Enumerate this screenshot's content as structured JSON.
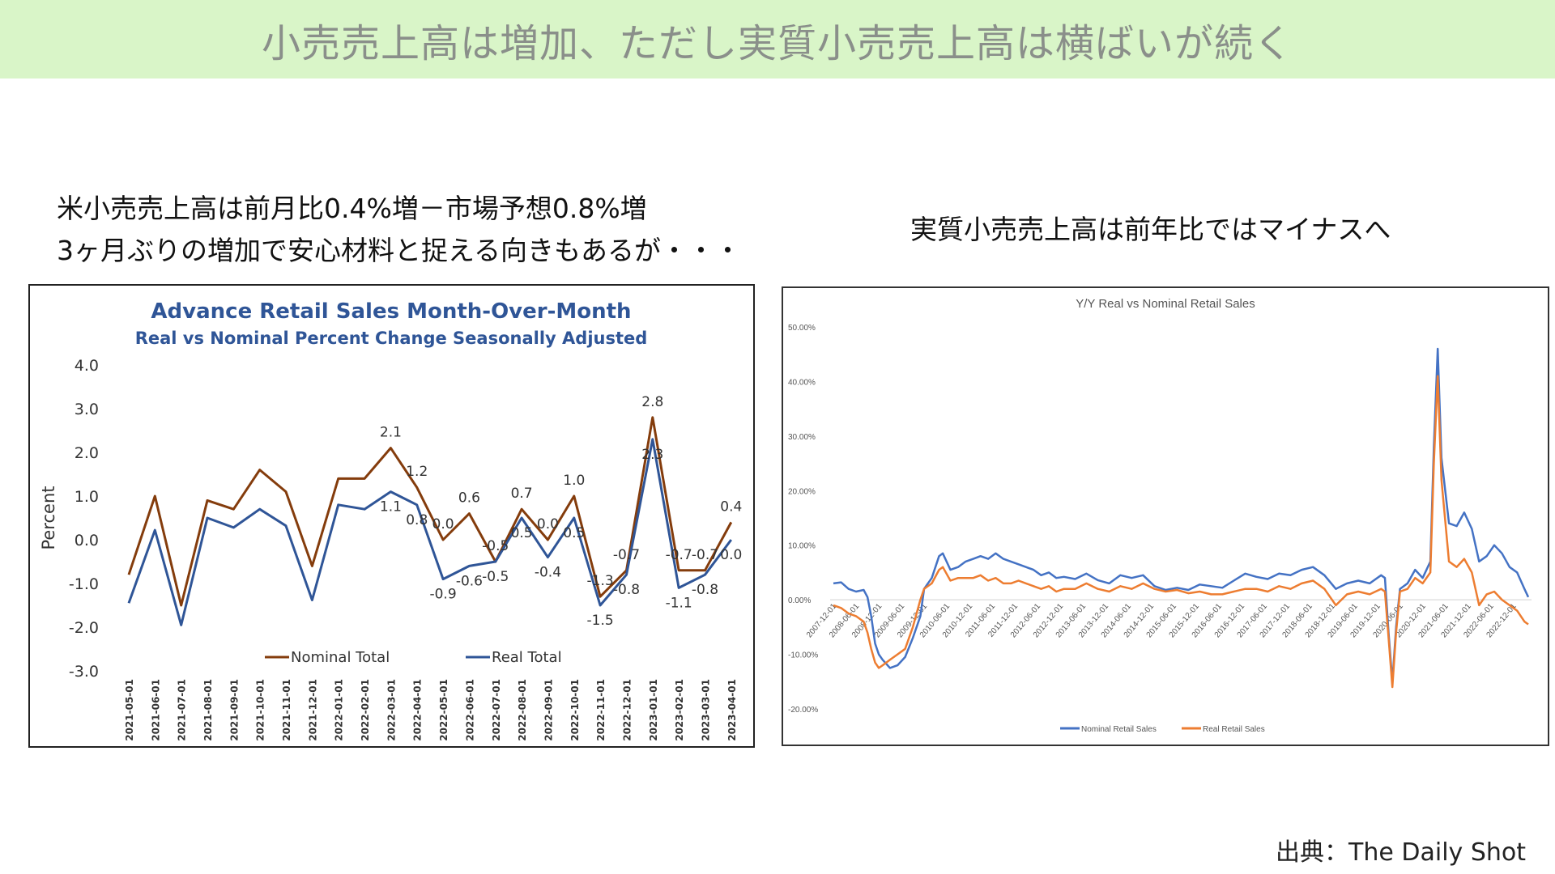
{
  "banner": {
    "title": "小売売上高は増加、ただし実質小売売上高は横ばいが続く"
  },
  "captions": {
    "left_line1": "米小売売上高は前月比0.4%増－市場予想0.8%増",
    "left_line2": "3ヶ月ぶりの増加で安心材料と捉える向きもあるが・・・",
    "right": "実質小売売上高は前年比ではマイナスへ"
  },
  "source": "出典：The Daily Shot",
  "chart_data": [
    {
      "type": "line",
      "title": "Advance Retail Sales Month-Over-Month",
      "subtitle": "Real vs Nominal Percent Change Seasonally Adjusted",
      "ylabel": "Percent",
      "ylim": [
        -3,
        4
      ],
      "y_ticks": [
        "4.0",
        "3.0",
        "2.0",
        "1.0",
        "0.0",
        "-1.0",
        "-2.0",
        "-3.0"
      ],
      "categories": [
        "2021-05-01",
        "2021-06-01",
        "2021-07-01",
        "2021-08-01",
        "2021-09-01",
        "2021-10-01",
        "2021-11-01",
        "2021-12-01",
        "2022-01-01",
        "2022-02-01",
        "2022-03-01",
        "2022-04-01",
        "2022-05-01",
        "2022-06-01",
        "2022-07-01",
        "2022-08-01",
        "2022-09-01",
        "2022-10-01",
        "2022-11-01",
        "2022-12-01",
        "2023-01-01",
        "2023-02-01",
        "2023-03-01",
        "2023-04-01"
      ],
      "series": [
        {
          "name": "Nominal Total",
          "color": "#843c0c",
          "values": [
            -0.8,
            1.0,
            -1.5,
            0.9,
            0.7,
            1.6,
            1.1,
            -0.6,
            1.4,
            1.4,
            2.1,
            1.2,
            0.0,
            0.6,
            -0.5,
            0.7,
            0.0,
            1.0,
            -1.3,
            -0.7,
            2.8,
            -0.7,
            -0.7,
            0.4
          ]
        },
        {
          "name": "Real Total",
          "color": "#2f5597",
          "values": [
            -1.45,
            0.22,
            -1.95,
            0.5,
            0.28,
            0.7,
            0.32,
            -1.38,
            0.8,
            0.7,
            1.1,
            0.8,
            -0.9,
            -0.6,
            -0.5,
            0.5,
            -0.4,
            0.5,
            -1.5,
            -0.8,
            2.3,
            -1.1,
            -0.8,
            0.0
          ]
        }
      ],
      "data_labels": {
        "nominal": [
          {
            "i": 10,
            "text": "2.1"
          },
          {
            "i": 11,
            "text": "1.2"
          },
          {
            "i": 12,
            "text": "0.0"
          },
          {
            "i": 13,
            "text": "0.6"
          },
          {
            "i": 14,
            "text": "-0.5"
          },
          {
            "i": 15,
            "text": "0.7"
          },
          {
            "i": 16,
            "text": "0.0"
          },
          {
            "i": 17,
            "text": "1.0"
          },
          {
            "i": 18,
            "text": "-1.3"
          },
          {
            "i": 19,
            "text": "-0.7"
          },
          {
            "i": 20,
            "text": "2.8"
          },
          {
            "i": 21,
            "text": "-0.7"
          },
          {
            "i": 22,
            "text": "-0.7"
          },
          {
            "i": 23,
            "text": "0.4"
          }
        ],
        "real": [
          {
            "i": 10,
            "text": "1.1"
          },
          {
            "i": 11,
            "text": "0.8"
          },
          {
            "i": 12,
            "text": "-0.9"
          },
          {
            "i": 13,
            "text": "-0.6"
          },
          {
            "i": 14,
            "text": "-0.5"
          },
          {
            "i": 15,
            "text": "0.5"
          },
          {
            "i": 16,
            "text": "-0.4"
          },
          {
            "i": 17,
            "text": "0.5"
          },
          {
            "i": 18,
            "text": "-1.5"
          },
          {
            "i": 19,
            "text": "-0.8"
          },
          {
            "i": 20,
            "text": "2.3"
          },
          {
            "i": 21,
            "text": "-1.1"
          },
          {
            "i": 22,
            "text": "-0.8"
          },
          {
            "i": 23,
            "text": "0.0"
          }
        ]
      },
      "legend": "bottom"
    },
    {
      "type": "line",
      "title": "Y/Y Real vs Nominal Retail Sales",
      "ylim": [
        -20,
        50
      ],
      "y_ticks": [
        "50.00%",
        "40.00%",
        "30.00%",
        "20.00%",
        "10.00%",
        "0.00%",
        "-10.00%",
        "-20.00%"
      ],
      "x_ticks": [
        "2007-12-01",
        "2008-06-01",
        "2008-12-01",
        "2009-06-01",
        "2009-12-01",
        "2010-06-01",
        "2010-12-01",
        "2011-06-01",
        "2011-12-01",
        "2012-06-01",
        "2012-12-01",
        "2013-06-01",
        "2013-12-01",
        "2014-06-01",
        "2014-12-01",
        "2015-06-01",
        "2015-12-01",
        "2016-06-01",
        "2016-12-01",
        "2017-06-01",
        "2017-12-01",
        "2018-06-01",
        "2018-12-01",
        "2019-06-01",
        "2019-12-01",
        "2020-06-01",
        "2020-12-01",
        "2021-06-01",
        "2021-12-01",
        "2022-06-01",
        "2022-12-01"
      ],
      "x_range": [
        "2007-12-01",
        "2023-04-01"
      ],
      "series": [
        {
          "name": "Nominal Retail Sales",
          "color": "#4472c4",
          "points": [
            [
              "2007-12-01",
              3
            ],
            [
              "2008-02-01",
              3.2
            ],
            [
              "2008-04-01",
              2
            ],
            [
              "2008-06-01",
              1.5
            ],
            [
              "2008-08-01",
              1.8
            ],
            [
              "2008-09-01",
              0.5
            ],
            [
              "2008-10-01",
              -3
            ],
            [
              "2008-11-01",
              -8
            ],
            [
              "2008-12-01",
              -10
            ],
            [
              "2009-01-01",
              -11
            ],
            [
              "2009-03-01",
              -12.5
            ],
            [
              "2009-05-01",
              -12
            ],
            [
              "2009-07-01",
              -10.5
            ],
            [
              "2009-09-01",
              -7
            ],
            [
              "2009-11-01",
              -3
            ],
            [
              "2009-12-01",
              2
            ],
            [
              "2010-02-01",
              4
            ],
            [
              "2010-04-01",
              8
            ],
            [
              "2010-05-01",
              8.5
            ],
            [
              "2010-07-01",
              5.5
            ],
            [
              "2010-09-01",
              6
            ],
            [
              "2010-11-01",
              7
            ],
            [
              "2011-01-01",
              7.5
            ],
            [
              "2011-03-01",
              8
            ],
            [
              "2011-05-01",
              7.5
            ],
            [
              "2011-07-01",
              8.5
            ],
            [
              "2011-09-01",
              7.5
            ],
            [
              "2011-11-01",
              7
            ],
            [
              "2012-01-01",
              6.5
            ],
            [
              "2012-03-01",
              6
            ],
            [
              "2012-05-01",
              5.5
            ],
            [
              "2012-07-01",
              4.5
            ],
            [
              "2012-09-01",
              5
            ],
            [
              "2012-11-01",
              4
            ],
            [
              "2013-01-01",
              4.2
            ],
            [
              "2013-04-01",
              3.8
            ],
            [
              "2013-07-01",
              4.8
            ],
            [
              "2013-10-01",
              3.6
            ],
            [
              "2014-01-01",
              3
            ],
            [
              "2014-04-01",
              4.5
            ],
            [
              "2014-07-01",
              4
            ],
            [
              "2014-10-01",
              4.5
            ],
            [
              "2015-01-01",
              2.5
            ],
            [
              "2015-04-01",
              1.8
            ],
            [
              "2015-07-01",
              2.2
            ],
            [
              "2015-10-01",
              1.8
            ],
            [
              "2016-01-01",
              2.8
            ],
            [
              "2016-04-01",
              2.5
            ],
            [
              "2016-07-01",
              2.2
            ],
            [
              "2016-10-01",
              3.5
            ],
            [
              "2017-01-01",
              4.8
            ],
            [
              "2017-04-01",
              4.2
            ],
            [
              "2017-07-01",
              3.8
            ],
            [
              "2017-10-01",
              4.8
            ],
            [
              "2018-01-01",
              4.5
            ],
            [
              "2018-04-01",
              5.5
            ],
            [
              "2018-07-01",
              6
            ],
            [
              "2018-10-01",
              4.5
            ],
            [
              "2019-01-01",
              2
            ],
            [
              "2019-04-01",
              3
            ],
            [
              "2019-07-01",
              3.5
            ],
            [
              "2019-10-01",
              3
            ],
            [
              "2020-01-01",
              4.5
            ],
            [
              "2020-02-01",
              4
            ],
            [
              "2020-03-01",
              -6
            ],
            [
              "2020-04-01",
              -15
            ],
            [
              "2020-05-01",
              -5
            ],
            [
              "2020-06-01",
              2
            ],
            [
              "2020-08-01",
              3
            ],
            [
              "2020-10-01",
              5.5
            ],
            [
              "2020-12-01",
              4
            ],
            [
              "2021-02-01",
              7
            ],
            [
              "2021-03-01",
              28
            ],
            [
              "2021-04-01",
              46
            ],
            [
              "2021-05-01",
              26
            ],
            [
              "2021-07-01",
              14
            ],
            [
              "2021-09-01",
              13.5
            ],
            [
              "2021-11-01",
              16
            ],
            [
              "2022-01-01",
              13
            ],
            [
              "2022-03-01",
              7
            ],
            [
              "2022-05-01",
              8
            ],
            [
              "2022-07-01",
              10
            ],
            [
              "2022-09-01",
              8.5
            ],
            [
              "2022-11-01",
              6
            ],
            [
              "2023-01-01",
              5
            ],
            [
              "2023-03-01",
              2
            ],
            [
              "2023-04-01",
              0.5
            ]
          ]
        },
        {
          "name": "Real Retail Sales",
          "color": "#ed7d31",
          "points": [
            [
              "2007-12-01",
              -1
            ],
            [
              "2008-02-01",
              -1.5
            ],
            [
              "2008-04-01",
              -2.5
            ],
            [
              "2008-06-01",
              -3
            ],
            [
              "2008-08-01",
              -4
            ],
            [
              "2008-09-01",
              -6
            ],
            [
              "2008-10-01",
              -9
            ],
            [
              "2008-11-01",
              -11.5
            ],
            [
              "2008-12-01",
              -12.5
            ],
            [
              "2009-01-01",
              -12
            ],
            [
              "2009-03-01",
              -11
            ],
            [
              "2009-05-01",
              -10
            ],
            [
              "2009-07-01",
              -9
            ],
            [
              "2009-09-01",
              -5
            ],
            [
              "2009-11-01",
              0
            ],
            [
              "2009-12-01",
              2
            ],
            [
              "2010-02-01",
              3
            ],
            [
              "2010-04-01",
              5.5
            ],
            [
              "2010-05-01",
              6
            ],
            [
              "2010-07-01",
              3.5
            ],
            [
              "2010-09-01",
              4
            ],
            [
              "2010-11-01",
              4
            ],
            [
              "2011-01-01",
              4
            ],
            [
              "2011-03-01",
              4.5
            ],
            [
              "2011-05-01",
              3.5
            ],
            [
              "2011-07-01",
              4
            ],
            [
              "2011-09-01",
              3
            ],
            [
              "2011-11-01",
              3
            ],
            [
              "2012-01-01",
              3.5
            ],
            [
              "2012-03-01",
              3
            ],
            [
              "2012-05-01",
              2.5
            ],
            [
              "2012-07-01",
              2
            ],
            [
              "2012-09-01",
              2.5
            ],
            [
              "2012-11-01",
              1.5
            ],
            [
              "2013-01-01",
              2
            ],
            [
              "2013-04-01",
              2
            ],
            [
              "2013-07-01",
              3
            ],
            [
              "2013-10-01",
              2
            ],
            [
              "2014-01-01",
              1.5
            ],
            [
              "2014-04-01",
              2.5
            ],
            [
              "2014-07-01",
              2
            ],
            [
              "2014-10-01",
              3
            ],
            [
              "2015-01-01",
              2
            ],
            [
              "2015-04-01",
              1.5
            ],
            [
              "2015-07-01",
              1.8
            ],
            [
              "2015-10-01",
              1.2
            ],
            [
              "2016-01-01",
              1.5
            ],
            [
              "2016-04-01",
              1
            ],
            [
              "2016-07-01",
              1
            ],
            [
              "2016-10-01",
              1.5
            ],
            [
              "2017-01-01",
              2
            ],
            [
              "2017-04-01",
              2
            ],
            [
              "2017-07-01",
              1.5
            ],
            [
              "2017-10-01",
              2.5
            ],
            [
              "2018-01-01",
              2
            ],
            [
              "2018-04-01",
              3
            ],
            [
              "2018-07-01",
              3.5
            ],
            [
              "2018-10-01",
              2
            ],
            [
              "2019-01-01",
              -1
            ],
            [
              "2019-04-01",
              1
            ],
            [
              "2019-07-01",
              1.5
            ],
            [
              "2019-10-01",
              1
            ],
            [
              "2020-01-01",
              2
            ],
            [
              "2020-02-01",
              1.5
            ],
            [
              "2020-03-01",
              -7
            ],
            [
              "2020-04-01",
              -16
            ],
            [
              "2020-05-01",
              -6
            ],
            [
              "2020-06-01",
              1.5
            ],
            [
              "2020-08-01",
              2
            ],
            [
              "2020-10-01",
              4
            ],
            [
              "2020-12-01",
              3
            ],
            [
              "2021-02-01",
              5
            ],
            [
              "2021-03-01",
              25
            ],
            [
              "2021-04-01",
              41
            ],
            [
              "2021-05-01",
              22
            ],
            [
              "2021-07-01",
              7
            ],
            [
              "2021-09-01",
              6
            ],
            [
              "2021-11-01",
              7.5
            ],
            [
              "2022-01-01",
              5
            ],
            [
              "2022-03-01",
              -1
            ],
            [
              "2022-05-01",
              1
            ],
            [
              "2022-07-01",
              1.5
            ],
            [
              "2022-09-01",
              0
            ],
            [
              "2022-11-01",
              -1
            ],
            [
              "2023-01-01",
              -2
            ],
            [
              "2023-03-01",
              -4
            ],
            [
              "2023-04-01",
              -4.5
            ]
          ]
        }
      ],
      "legend": "bottom"
    }
  ]
}
